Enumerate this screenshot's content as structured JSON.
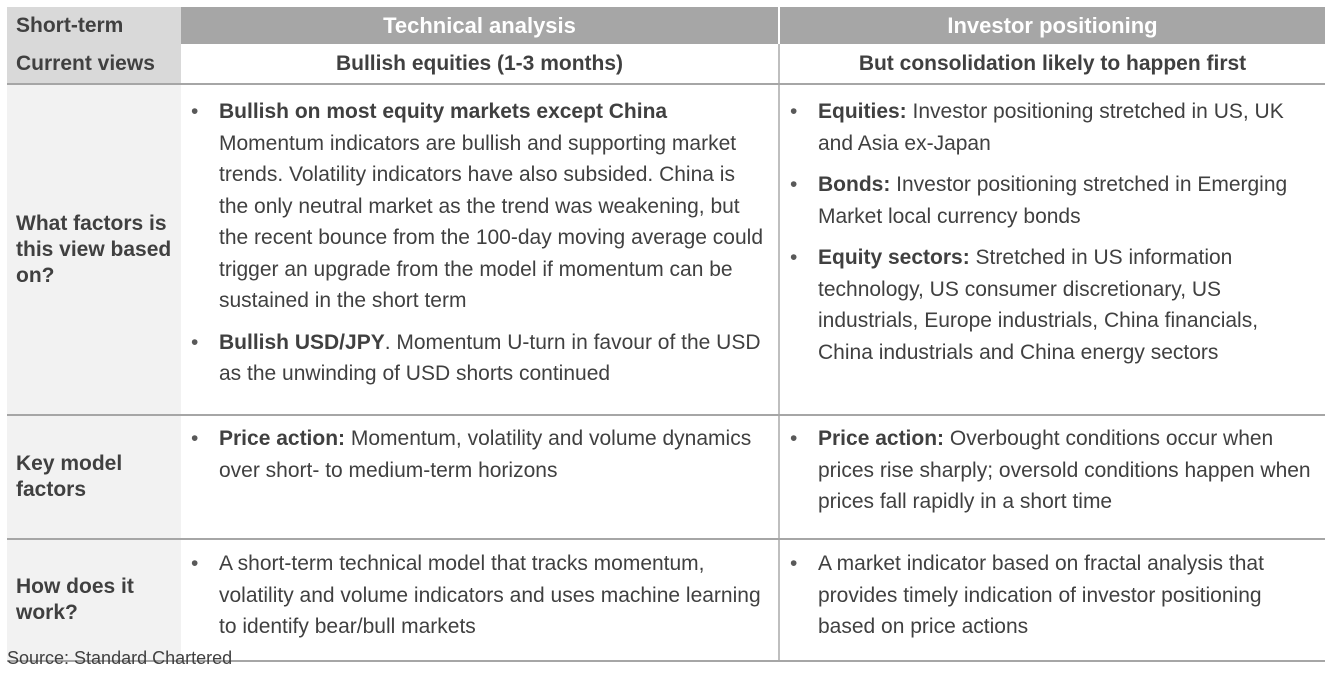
{
  "header": {
    "label": "Short-term",
    "technical": "Technical analysis",
    "investor": "Investor positioning"
  },
  "views": {
    "label": "Current views",
    "technical": "Bullish equities (1-3 months)",
    "investor": "But consolidation likely to happen first"
  },
  "factors": {
    "label": "What factors is this view based on?",
    "technical": [
      {
        "bold": "Bullish on most equity markets except China",
        "text": "Momentum indicators are bullish and supporting market trends. Volatility indicators have also subsided. China is the only neutral market as the trend was weakening, but the recent bounce from the 100-day moving average could trigger an upgrade from the model if momentum can be sustained in the short term"
      },
      {
        "bold": "Bullish USD/JPY",
        "text": ". Momentum U-turn in favour of the USD as the unwinding of USD shorts continued"
      }
    ],
    "investor": [
      {
        "bold": "Equities:",
        "text": " Investor positioning stretched in US, UK and Asia ex-Japan"
      },
      {
        "bold": "Bonds:",
        "text": " Investor positioning stretched in Emerging Market local currency bonds"
      },
      {
        "bold": "Equity sectors:",
        "text": " Stretched in US information technology, US consumer discretionary, US industrials, Europe industrials, China financials, China industrials and China energy sectors"
      }
    ]
  },
  "model": {
    "label": "Key model factors",
    "technical": {
      "bold": "Price action:",
      "text": " Momentum, volatility and volume dynamics over short- to medium-term horizons"
    },
    "investor": {
      "bold": "Price action:",
      "text": " Overbought conditions occur when prices rise sharply; oversold conditions happen when prices fall rapidly in a short time"
    }
  },
  "how": {
    "label": "How does it work?",
    "technical": "A short-term technical model that tracks momentum, volatility and volume indicators and uses machine learning to identify bear/bull markets",
    "investor": "A market indicator based on fractal analysis that provides timely indication of investor positioning based on price actions"
  },
  "source": "Source: Standard Chartered"
}
